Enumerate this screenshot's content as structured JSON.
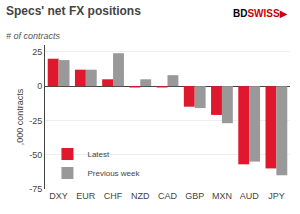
{
  "chart_data": {
    "type": "bar",
    "title": "Specs' net FX positions",
    "subtitle": "# of contracts",
    "ylabel": ",000 contracts",
    "categories": [
      "DXY",
      "EUR",
      "CHF",
      "NZD",
      "CAD",
      "GBP",
      "MXN",
      "AUD",
      "JPY"
    ],
    "series": [
      {
        "name": "Latest",
        "color": "#e0182d",
        "values": [
          20,
          12,
          5,
          -1,
          -1,
          -15,
          -21,
          -57,
          -60
        ]
      },
      {
        "name": "Previous week",
        "color": "#999999",
        "values": [
          19,
          12,
          24,
          5,
          8,
          -16,
          -27,
          -55,
          -65
        ]
      }
    ],
    "ylim": [
      -75,
      30
    ],
    "yticks": [
      -75,
      -50,
      -25,
      0,
      25
    ],
    "grid": true,
    "legend": "lower left",
    "annotations": [
      {
        "text": "BD",
        "color": "#000000"
      },
      {
        "text": "SWISS",
        "color": "#cc0000"
      },
      {
        "text": "▶",
        "color": "#cc0000"
      }
    ]
  }
}
